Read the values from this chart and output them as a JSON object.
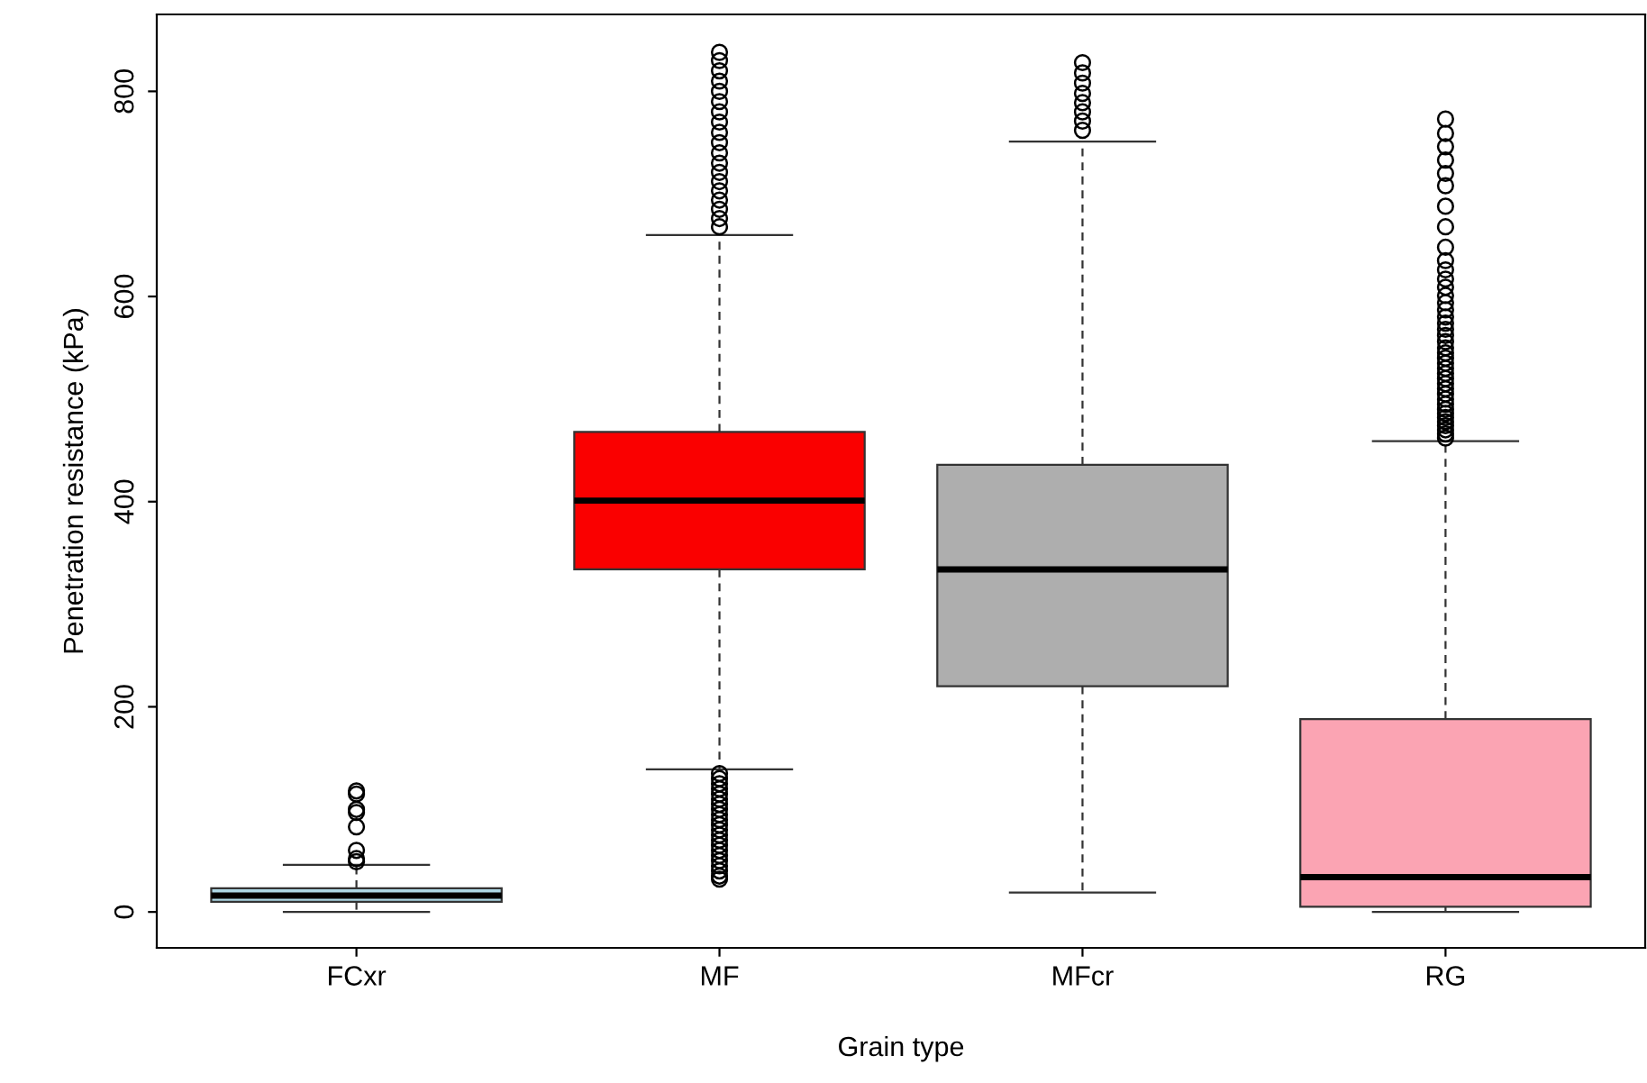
{
  "chart_data": {
    "type": "box",
    "xlabel": "Grain type",
    "ylabel": "Penetration resistance (kPa)",
    "categories": [
      "FCxr",
      "MF",
      "MFcr",
      "RG"
    ],
    "colors": [
      "#add8e6",
      "#fa0000",
      "#aeaeae",
      "#fba4b3"
    ],
    "boxes": [
      {
        "low": 0,
        "q1": 10,
        "median": 16,
        "q3": 23,
        "high": 46,
        "outliers": [
          49,
          52,
          60,
          83,
          97,
          100,
          115,
          118
        ]
      },
      {
        "low": 139,
        "q1": 334,
        "median": 401,
        "q3": 468,
        "high": 660,
        "outliers": [
          668,
          676,
          685,
          694,
          703,
          712,
          721,
          730,
          740,
          750,
          760,
          770,
          780,
          790,
          800,
          810,
          820,
          830,
          838,
          135,
          130,
          125,
          120,
          115,
          110,
          105,
          100,
          95,
          90,
          85,
          80,
          75,
          70,
          65,
          60,
          55,
          50,
          45,
          40,
          35,
          32
        ]
      },
      {
        "low": 19,
        "q1": 220,
        "median": 334,
        "q3": 436,
        "high": 751,
        "outliers": [
          762,
          771,
          780,
          789,
          798,
          808,
          818,
          828
        ]
      },
      {
        "low": 0,
        "q1": 5,
        "median": 34,
        "q3": 188,
        "high": 459,
        "outliers": [
          462,
          466,
          470,
          474,
          478,
          482,
          486,
          490,
          495,
          500,
          505,
          510,
          515,
          520,
          525,
          530,
          535,
          540,
          545,
          550,
          556,
          562,
          568,
          574,
          580,
          587,
          594,
          601,
          609,
          617,
          626,
          635,
          648,
          668,
          688,
          708,
          720,
          733,
          746,
          759,
          773
        ]
      }
    ],
    "ylim": [
      -35,
      875
    ],
    "yticks": [
      0,
      200,
      400,
      600,
      800
    ]
  }
}
